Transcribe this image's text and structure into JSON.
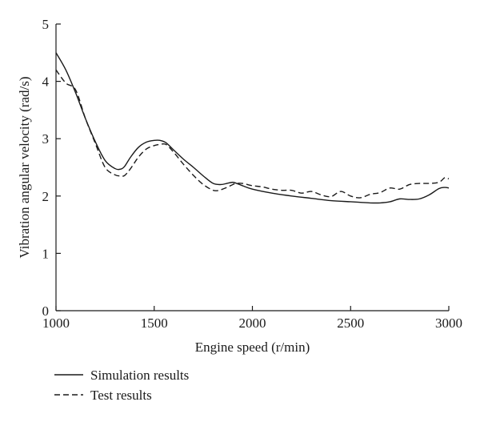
{
  "chart_data": {
    "type": "line",
    "title": "",
    "xlabel": "Engine speed (r/min)",
    "ylabel": "Vibration angular velocity (rad/s)",
    "xlim": [
      1000,
      3000
    ],
    "ylim": [
      0,
      5
    ],
    "xticks": [
      1000,
      1500,
      2000,
      2500,
      3000
    ],
    "yticks": [
      0,
      1,
      2,
      3,
      4,
      5
    ],
    "xtick_labels": [
      "1000",
      "1500",
      "2000",
      "2500",
      "3000"
    ],
    "ytick_labels": [
      "0",
      "1",
      "2",
      "3",
      "4",
      "5"
    ],
    "grid": false,
    "legend_position": "bottom-left",
    "series": [
      {
        "name": "Simulation results",
        "style": "solid",
        "color": "#1a1a1a",
        "x": [
          1000,
          1050,
          1100,
          1150,
          1200,
          1250,
          1300,
          1330,
          1350,
          1380,
          1420,
          1460,
          1500,
          1530,
          1560,
          1600,
          1650,
          1700,
          1750,
          1800,
          1840,
          1870,
          1900,
          1920,
          1950,
          2000,
          2100,
          2200,
          2300,
          2400,
          2500,
          2550,
          2600,
          2650,
          2700,
          2750,
          2800,
          2850,
          2900,
          2950,
          2980,
          3000
        ],
        "y": [
          4.5,
          4.2,
          3.8,
          3.35,
          2.95,
          2.62,
          2.48,
          2.47,
          2.52,
          2.68,
          2.85,
          2.94,
          2.97,
          2.97,
          2.93,
          2.8,
          2.64,
          2.5,
          2.35,
          2.22,
          2.2,
          2.22,
          2.24,
          2.22,
          2.18,
          2.12,
          2.05,
          2.0,
          1.96,
          1.92,
          1.9,
          1.89,
          1.88,
          1.88,
          1.9,
          1.95,
          1.94,
          1.95,
          2.02,
          2.13,
          2.15,
          2.14
        ]
      },
      {
        "name": "Test results",
        "style": "dashed",
        "color": "#1a1a1a",
        "x": [
          1000,
          1050,
          1100,
          1150,
          1200,
          1250,
          1300,
          1330,
          1350,
          1380,
          1420,
          1460,
          1500,
          1530,
          1560,
          1600,
          1650,
          1700,
          1750,
          1800,
          1830,
          1870,
          1900,
          1920,
          1950,
          2000,
          2050,
          2100,
          2150,
          2200,
          2250,
          2300,
          2350,
          2400,
          2450,
          2500,
          2550,
          2600,
          2650,
          2700,
          2750,
          2800,
          2850,
          2900,
          2950,
          2980,
          3000
        ],
        "y": [
          4.2,
          3.97,
          3.85,
          3.35,
          2.92,
          2.5,
          2.37,
          2.35,
          2.36,
          2.48,
          2.68,
          2.82,
          2.88,
          2.9,
          2.9,
          2.76,
          2.55,
          2.36,
          2.2,
          2.1,
          2.1,
          2.15,
          2.2,
          2.22,
          2.22,
          2.18,
          2.16,
          2.12,
          2.1,
          2.1,
          2.05,
          2.08,
          2.02,
          1.99,
          2.08,
          2.0,
          1.97,
          2.03,
          2.06,
          2.14,
          2.12,
          2.2,
          2.22,
          2.22,
          2.24,
          2.32,
          2.3
        ]
      }
    ]
  }
}
